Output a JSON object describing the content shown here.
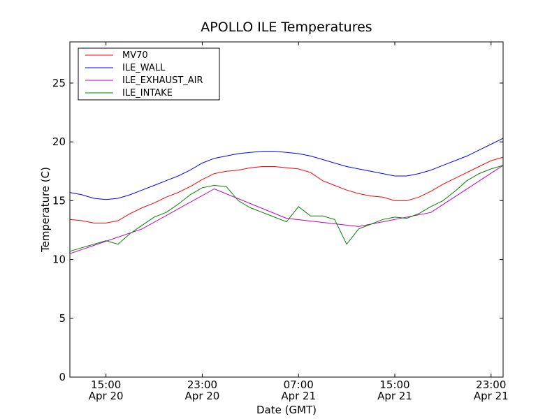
{
  "chart_data": {
    "type": "line",
    "title": "APOLLO ILE Temperatures",
    "xlabel": "Date (GMT)",
    "ylabel": "Temperature (C)",
    "xlim": [
      "2013-04-20 12:00",
      "2013-04-22 00:00"
    ],
    "ylim": [
      0,
      28.5
    ],
    "yticks": [
      0,
      5,
      10,
      15,
      20,
      25
    ],
    "xticks": [
      {
        "time": "2013-04-20 15:00",
        "line1": "15:00",
        "line2": "Apr 20"
      },
      {
        "time": "2013-04-20 23:00",
        "line1": "23:00",
        "line2": "Apr 20"
      },
      {
        "time": "2013-04-21 07:00",
        "line1": "07:00",
        "line2": "Apr 21"
      },
      {
        "time": "2013-04-21 15:00",
        "line1": "15:00",
        "line2": "Apr 21"
      },
      {
        "time": "2013-04-21 23:00",
        "line1": "23:00",
        "line2": "Apr 21"
      }
    ],
    "grid": false,
    "legend": "upper-left",
    "series": [
      {
        "name": "MV70",
        "color": "#ff0000",
        "x": [
          "2013-04-20 12:00",
          "2013-04-20 13:00",
          "2013-04-20 14:00",
          "2013-04-20 15:00",
          "2013-04-20 16:00",
          "2013-04-20 17:00",
          "2013-04-20 18:00",
          "2013-04-20 19:00",
          "2013-04-20 20:00",
          "2013-04-20 21:00",
          "2013-04-20 22:00",
          "2013-04-20 23:00",
          "2013-04-21 00:00",
          "2013-04-21 01:00",
          "2013-04-21 02:00",
          "2013-04-21 03:00",
          "2013-04-21 04:00",
          "2013-04-21 05:00",
          "2013-04-21 06:00",
          "2013-04-21 07:00",
          "2013-04-21 08:00",
          "2013-04-21 09:00",
          "2013-04-21 10:00",
          "2013-04-21 11:00",
          "2013-04-21 12:00",
          "2013-04-21 13:00",
          "2013-04-21 14:00",
          "2013-04-21 15:00",
          "2013-04-21 16:00",
          "2013-04-21 17:00",
          "2013-04-21 18:00",
          "2013-04-21 19:00",
          "2013-04-21 20:00",
          "2013-04-21 21:00",
          "2013-04-21 22:00",
          "2013-04-21 23:00",
          "2013-04-22 00:00"
        ],
        "y": [
          13.4,
          13.3,
          13.1,
          13.1,
          13.3,
          13.9,
          14.4,
          14.8,
          15.3,
          15.7,
          16.2,
          16.8,
          17.3,
          17.5,
          17.6,
          17.8,
          17.9,
          17.9,
          17.8,
          17.7,
          17.4,
          16.7,
          16.3,
          15.9,
          15.6,
          15.4,
          15.3,
          15.0,
          15.0,
          15.3,
          15.8,
          16.4,
          16.9,
          17.4,
          17.9,
          18.4,
          18.7
        ]
      },
      {
        "name": "ILE_WALL",
        "color": "#0000ff",
        "x": [
          "2013-04-20 12:00",
          "2013-04-20 13:00",
          "2013-04-20 14:00",
          "2013-04-20 15:00",
          "2013-04-20 16:00",
          "2013-04-20 17:00",
          "2013-04-20 18:00",
          "2013-04-20 19:00",
          "2013-04-20 20:00",
          "2013-04-20 21:00",
          "2013-04-20 22:00",
          "2013-04-20 23:00",
          "2013-04-21 00:00",
          "2013-04-21 01:00",
          "2013-04-21 02:00",
          "2013-04-21 03:00",
          "2013-04-21 04:00",
          "2013-04-21 05:00",
          "2013-04-21 06:00",
          "2013-04-21 07:00",
          "2013-04-21 08:00",
          "2013-04-21 09:00",
          "2013-04-21 10:00",
          "2013-04-21 11:00",
          "2013-04-21 12:00",
          "2013-04-21 13:00",
          "2013-04-21 14:00",
          "2013-04-21 15:00",
          "2013-04-21 16:00",
          "2013-04-21 17:00",
          "2013-04-21 18:00",
          "2013-04-21 19:00",
          "2013-04-21 20:00",
          "2013-04-21 21:00",
          "2013-04-21 22:00",
          "2013-04-21 23:00",
          "2013-04-22 00:00"
        ],
        "y": [
          15.7,
          15.5,
          15.2,
          15.1,
          15.2,
          15.5,
          15.9,
          16.3,
          16.7,
          17.1,
          17.6,
          18.2,
          18.6,
          18.8,
          19.0,
          19.1,
          19.2,
          19.2,
          19.1,
          19.0,
          18.8,
          18.5,
          18.2,
          17.9,
          17.7,
          17.5,
          17.3,
          17.1,
          17.1,
          17.3,
          17.6,
          18.0,
          18.4,
          18.8,
          19.3,
          19.8,
          20.3
        ]
      },
      {
        "name": "ILE_EXHAUST_AIR",
        "color": "#bf00bf",
        "x": [
          "2013-04-20 12:00",
          "2013-04-20 18:00",
          "2013-04-21 00:00",
          "2013-04-21 06:00",
          "2013-04-21 12:00",
          "2013-04-21 18:00",
          "2013-04-22 00:00"
        ],
        "y": [
          10.5,
          12.6,
          16.0,
          13.5,
          12.8,
          14.0,
          18.0
        ]
      },
      {
        "name": "ILE_INTAKE",
        "color": "#008000",
        "x": [
          "2013-04-20 12:00",
          "2013-04-20 13:00",
          "2013-04-20 14:00",
          "2013-04-20 15:00",
          "2013-04-20 16:00",
          "2013-04-20 17:00",
          "2013-04-20 18:00",
          "2013-04-20 19:00",
          "2013-04-20 20:00",
          "2013-04-20 21:00",
          "2013-04-20 22:00",
          "2013-04-20 23:00",
          "2013-04-21 00:00",
          "2013-04-21 01:00",
          "2013-04-21 02:00",
          "2013-04-21 03:00",
          "2013-04-21 04:00",
          "2013-04-21 05:00",
          "2013-04-21 06:00",
          "2013-04-21 07:00",
          "2013-04-21 08:00",
          "2013-04-21 09:00",
          "2013-04-21 10:00",
          "2013-04-21 11:00",
          "2013-04-21 12:00",
          "2013-04-21 13:00",
          "2013-04-21 14:00",
          "2013-04-21 15:00",
          "2013-04-21 16:00",
          "2013-04-21 17:00",
          "2013-04-21 18:00",
          "2013-04-21 19:00",
          "2013-04-21 20:00",
          "2013-04-21 21:00",
          "2013-04-21 22:00",
          "2013-04-21 23:00",
          "2013-04-22 00:00"
        ],
        "y": [
          10.7,
          11.0,
          11.3,
          11.6,
          11.3,
          12.2,
          12.9,
          13.6,
          14.0,
          14.7,
          15.5,
          16.1,
          16.3,
          16.2,
          15.0,
          14.4,
          14.0,
          13.6,
          13.2,
          14.5,
          13.7,
          13.7,
          13.4,
          11.3,
          12.6,
          13.0,
          13.4,
          13.6,
          13.5,
          13.9,
          14.5,
          15.0,
          15.8,
          16.7,
          17.3,
          17.7,
          18.0
        ]
      }
    ]
  }
}
